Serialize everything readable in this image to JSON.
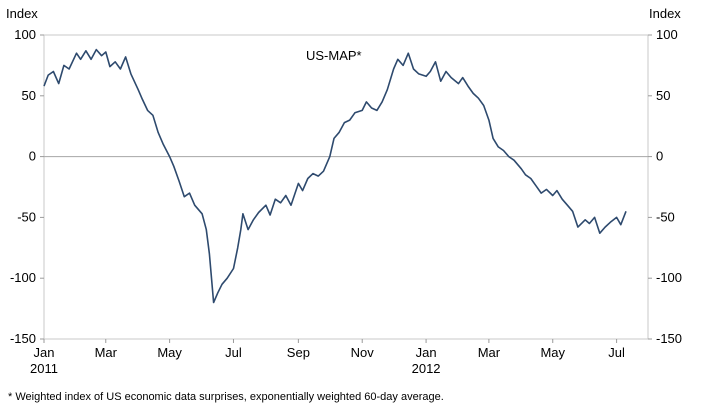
{
  "chart_data": {
    "type": "line",
    "title": "",
    "series_label": "US-MAP*",
    "ylabel_left": "Index",
    "ylabel_right": "Index",
    "ylim": [
      -150,
      100
    ],
    "yticks": [
      100,
      50,
      0,
      -50,
      -100,
      -150
    ],
    "ytick_labels": [
      "100",
      "50",
      "0",
      "-50",
      "-100",
      "-150"
    ],
    "xlim": [
      "2011-01-01",
      "2012-07-31"
    ],
    "xticks": [
      {
        "date": "2011-01-01",
        "label": "Jan",
        "year": "2011"
      },
      {
        "date": "2011-03-01",
        "label": "Mar",
        "year": ""
      },
      {
        "date": "2011-05-01",
        "label": "May",
        "year": ""
      },
      {
        "date": "2011-07-01",
        "label": "Jul",
        "year": ""
      },
      {
        "date": "2011-09-01",
        "label": "Sep",
        "year": ""
      },
      {
        "date": "2011-11-01",
        "label": "Nov",
        "year": ""
      },
      {
        "date": "2012-01-01",
        "label": "Jan",
        "year": "2012"
      },
      {
        "date": "2012-03-01",
        "label": "Mar",
        "year": ""
      },
      {
        "date": "2012-05-01",
        "label": "May",
        "year": ""
      },
      {
        "date": "2012-07-01",
        "label": "Jul",
        "year": ""
      }
    ],
    "zero_line": true,
    "grid": false,
    "line_color": "#2e4a6e",
    "zero_line_color": "#a6a6a6",
    "series": [
      {
        "name": "US-MAP*",
        "points": [
          [
            "2011-01-01",
            58
          ],
          [
            "2011-01-05",
            67
          ],
          [
            "2011-01-10",
            70
          ],
          [
            "2011-01-15",
            60
          ],
          [
            "2011-01-20",
            75
          ],
          [
            "2011-01-25",
            72
          ],
          [
            "2011-02-01",
            85
          ],
          [
            "2011-02-05",
            80
          ],
          [
            "2011-02-10",
            87
          ],
          [
            "2011-02-15",
            80
          ],
          [
            "2011-02-20",
            88
          ],
          [
            "2011-02-25",
            83
          ],
          [
            "2011-03-01",
            86
          ],
          [
            "2011-03-05",
            74
          ],
          [
            "2011-03-10",
            78
          ],
          [
            "2011-03-15",
            72
          ],
          [
            "2011-03-20",
            82
          ],
          [
            "2011-03-25",
            68
          ],
          [
            "2011-04-01",
            55
          ],
          [
            "2011-04-05",
            47
          ],
          [
            "2011-04-10",
            38
          ],
          [
            "2011-04-15",
            34
          ],
          [
            "2011-04-20",
            20
          ],
          [
            "2011-04-25",
            10
          ],
          [
            "2011-05-01",
            0
          ],
          [
            "2011-05-05",
            -8
          ],
          [
            "2011-05-10",
            -20
          ],
          [
            "2011-05-15",
            -33
          ],
          [
            "2011-05-20",
            -30
          ],
          [
            "2011-05-25",
            -40
          ],
          [
            "2011-06-01",
            -47
          ],
          [
            "2011-06-05",
            -60
          ],
          [
            "2011-06-08",
            -80
          ],
          [
            "2011-06-10",
            -100
          ],
          [
            "2011-06-12",
            -120
          ],
          [
            "2011-06-16",
            -112
          ],
          [
            "2011-06-20",
            -105
          ],
          [
            "2011-06-25",
            -100
          ],
          [
            "2011-07-01",
            -92
          ],
          [
            "2011-07-05",
            -75
          ],
          [
            "2011-07-08",
            -60
          ],
          [
            "2011-07-10",
            -47
          ],
          [
            "2011-07-15",
            -60
          ],
          [
            "2011-07-20",
            -52
          ],
          [
            "2011-07-25",
            -46
          ],
          [
            "2011-08-01",
            -40
          ],
          [
            "2011-08-05",
            -48
          ],
          [
            "2011-08-10",
            -35
          ],
          [
            "2011-08-15",
            -38
          ],
          [
            "2011-08-20",
            -32
          ],
          [
            "2011-08-25",
            -40
          ],
          [
            "2011-09-01",
            -22
          ],
          [
            "2011-09-05",
            -28
          ],
          [
            "2011-09-10",
            -18
          ],
          [
            "2011-09-15",
            -14
          ],
          [
            "2011-09-20",
            -16
          ],
          [
            "2011-09-25",
            -12
          ],
          [
            "2011-10-01",
            0
          ],
          [
            "2011-10-05",
            15
          ],
          [
            "2011-10-10",
            20
          ],
          [
            "2011-10-15",
            28
          ],
          [
            "2011-10-20",
            30
          ],
          [
            "2011-10-25",
            36
          ],
          [
            "2011-11-01",
            38
          ],
          [
            "2011-11-05",
            45
          ],
          [
            "2011-11-10",
            40
          ],
          [
            "2011-11-15",
            38
          ],
          [
            "2011-11-20",
            45
          ],
          [
            "2011-11-25",
            55
          ],
          [
            "2011-12-01",
            72
          ],
          [
            "2011-12-05",
            80
          ],
          [
            "2011-12-10",
            75
          ],
          [
            "2011-12-15",
            85
          ],
          [
            "2011-12-20",
            72
          ],
          [
            "2011-12-25",
            68
          ],
          [
            "2012-01-01",
            66
          ],
          [
            "2012-01-05",
            70
          ],
          [
            "2012-01-10",
            78
          ],
          [
            "2012-01-15",
            62
          ],
          [
            "2012-01-20",
            70
          ],
          [
            "2012-01-25",
            65
          ],
          [
            "2012-02-01",
            60
          ],
          [
            "2012-02-05",
            65
          ],
          [
            "2012-02-10",
            58
          ],
          [
            "2012-02-15",
            52
          ],
          [
            "2012-02-20",
            48
          ],
          [
            "2012-02-25",
            42
          ],
          [
            "2012-03-01",
            30
          ],
          [
            "2012-03-05",
            15
          ],
          [
            "2012-03-10",
            8
          ],
          [
            "2012-03-15",
            5
          ],
          [
            "2012-03-20",
            0
          ],
          [
            "2012-03-25",
            -3
          ],
          [
            "2012-04-01",
            -10
          ],
          [
            "2012-04-05",
            -15
          ],
          [
            "2012-04-10",
            -18
          ],
          [
            "2012-04-15",
            -24
          ],
          [
            "2012-04-20",
            -30
          ],
          [
            "2012-04-25",
            -27
          ],
          [
            "2012-05-01",
            -32
          ],
          [
            "2012-05-05",
            -28
          ],
          [
            "2012-05-10",
            -35
          ],
          [
            "2012-05-15",
            -40
          ],
          [
            "2012-05-20",
            -45
          ],
          [
            "2012-05-25",
            -58
          ],
          [
            "2012-06-01",
            -52
          ],
          [
            "2012-06-05",
            -55
          ],
          [
            "2012-06-10",
            -50
          ],
          [
            "2012-06-15",
            -63
          ],
          [
            "2012-06-20",
            -58
          ],
          [
            "2012-06-25",
            -54
          ],
          [
            "2012-07-01",
            -50
          ],
          [
            "2012-07-05",
            -56
          ],
          [
            "2012-07-10",
            -45
          ]
        ]
      }
    ]
  },
  "footnote": "* Weighted index of US economic data surprises, exponentially weighted  60-day average."
}
